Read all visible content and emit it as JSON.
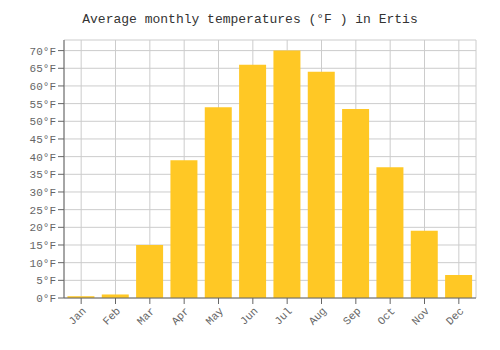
{
  "chart_data": {
    "type": "bar",
    "title": "Average monthly temperatures (°F ) in Ertis",
    "categories": [
      "Jan",
      "Feb",
      "Mar",
      "Apr",
      "May",
      "Jun",
      "Jul",
      "Aug",
      "Sep",
      "Oct",
      "Nov",
      "Dec"
    ],
    "values": [
      0.5,
      1.0,
      15.0,
      39.0,
      54.0,
      66.0,
      70.0,
      64.0,
      53.5,
      37.0,
      19.0,
      6.5
    ],
    "color": "#FFC825",
    "ylim": [
      0,
      73
    ],
    "yticks": [
      {
        "value": 0,
        "label": "0°F"
      },
      {
        "value": 5,
        "label": "5°F"
      },
      {
        "value": 10,
        "label": "10°F"
      },
      {
        "value": 15,
        "label": "15°F"
      },
      {
        "value": 20,
        "label": "20°F"
      },
      {
        "value": 25,
        "label": "25°F"
      },
      {
        "value": 30,
        "label": "30°F"
      },
      {
        "value": 35,
        "label": "35°F"
      },
      {
        "value": 40,
        "label": "40°F"
      },
      {
        "value": 45,
        "label": "45°F"
      },
      {
        "value": 50,
        "label": "50°F"
      },
      {
        "value": 55,
        "label": "55°F"
      },
      {
        "value": 60,
        "label": "60°F"
      },
      {
        "value": 65,
        "label": "65°F"
      },
      {
        "value": 70,
        "label": "70°F"
      }
    ],
    "grid": true
  }
}
